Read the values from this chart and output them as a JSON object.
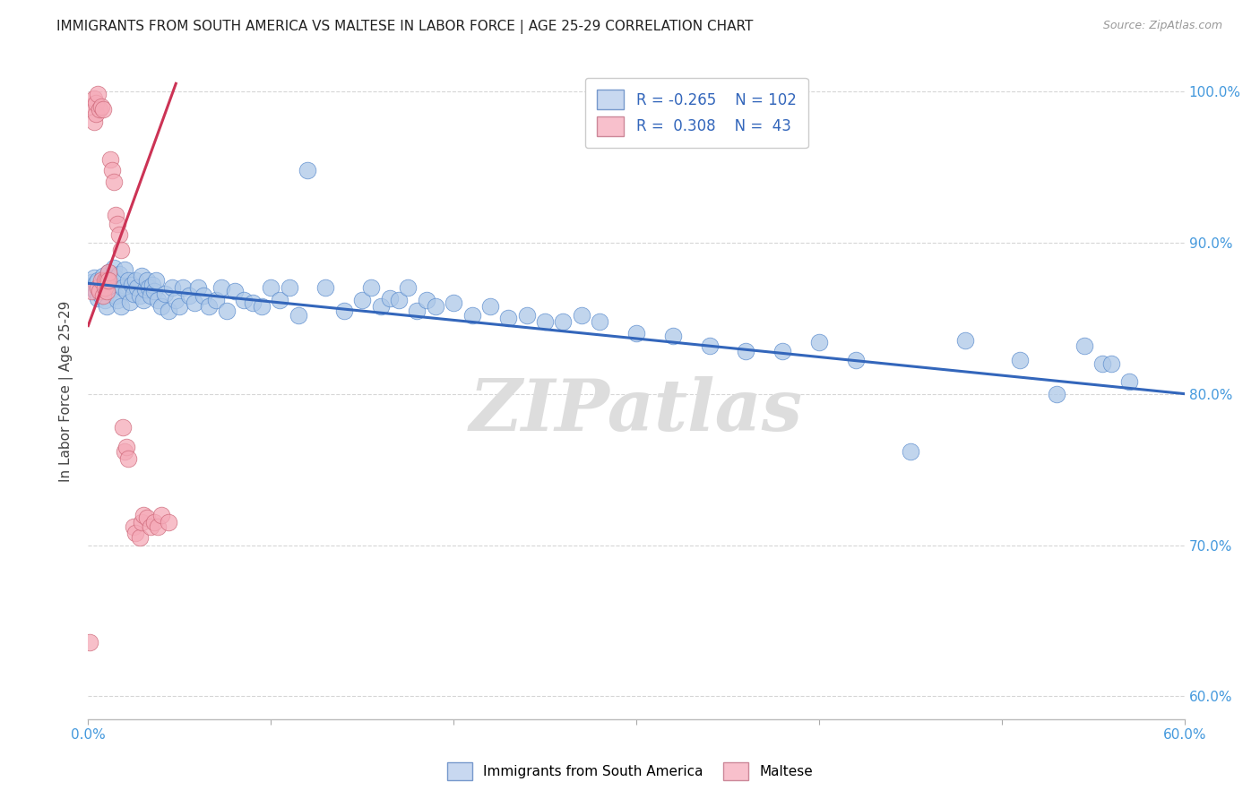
{
  "title": "IMMIGRANTS FROM SOUTH AMERICA VS MALTESE IN LABOR FORCE | AGE 25-29 CORRELATION CHART",
  "source": "Source: ZipAtlas.com",
  "ylabel": "In Labor Force | Age 25-29",
  "xmin": 0.0,
  "xmax": 0.6,
  "ymin": 0.585,
  "ymax": 1.018,
  "yticks": [
    0.6,
    0.7,
    0.8,
    0.9,
    1.0
  ],
  "ytick_labels_right": [
    "60.0%",
    "70.0%",
    "80.0%",
    "90.0%",
    "100.0%"
  ],
  "xticks": [
    0.0,
    0.1,
    0.2,
    0.3,
    0.4,
    0.5,
    0.6
  ],
  "blue_trend_x0": 0.0,
  "blue_trend_y0": 0.873,
  "blue_trend_x1": 0.6,
  "blue_trend_y1": 0.8,
  "pink_trend_x0": 0.0,
  "pink_trend_y0": 0.845,
  "pink_trend_x1": 0.048,
  "pink_trend_y1": 1.005,
  "legend_r_blue": "-0.265",
  "legend_n_blue": "102",
  "legend_r_pink": "0.308",
  "legend_n_pink": "43",
  "blue_dot_color": "#adc8e8",
  "blue_dot_edge": "#5588cc",
  "pink_dot_color": "#f5aab8",
  "pink_dot_edge": "#cc6677",
  "blue_line_color": "#3366bb",
  "pink_line_color": "#cc3355",
  "watermark": "ZIPatlas",
  "blue_scatter_x": [
    0.001,
    0.002,
    0.003,
    0.003,
    0.004,
    0.004,
    0.005,
    0.005,
    0.006,
    0.007,
    0.008,
    0.009,
    0.01,
    0.01,
    0.011,
    0.012,
    0.013,
    0.014,
    0.015,
    0.015,
    0.016,
    0.017,
    0.018,
    0.019,
    0.02,
    0.021,
    0.022,
    0.023,
    0.024,
    0.025,
    0.026,
    0.027,
    0.028,
    0.029,
    0.03,
    0.031,
    0.032,
    0.033,
    0.034,
    0.035,
    0.036,
    0.037,
    0.038,
    0.04,
    0.042,
    0.044,
    0.046,
    0.048,
    0.05,
    0.052,
    0.055,
    0.058,
    0.06,
    0.063,
    0.066,
    0.07,
    0.073,
    0.076,
    0.08,
    0.085,
    0.09,
    0.095,
    0.1,
    0.105,
    0.11,
    0.115,
    0.12,
    0.13,
    0.14,
    0.15,
    0.155,
    0.16,
    0.165,
    0.17,
    0.175,
    0.18,
    0.185,
    0.19,
    0.2,
    0.21,
    0.22,
    0.23,
    0.24,
    0.25,
    0.26,
    0.27,
    0.28,
    0.3,
    0.32,
    0.34,
    0.36,
    0.38,
    0.4,
    0.42,
    0.45,
    0.48,
    0.51,
    0.53,
    0.545,
    0.555,
    0.56,
    0.57
  ],
  "blue_scatter_y": [
    0.871,
    0.874,
    0.877,
    0.869,
    0.873,
    0.867,
    0.875,
    0.863,
    0.87,
    0.865,
    0.878,
    0.862,
    0.858,
    0.872,
    0.88,
    0.875,
    0.869,
    0.883,
    0.865,
    0.877,
    0.862,
    0.879,
    0.858,
    0.87,
    0.882,
    0.868,
    0.875,
    0.861,
    0.872,
    0.866,
    0.875,
    0.87,
    0.865,
    0.878,
    0.862,
    0.869,
    0.875,
    0.87,
    0.865,
    0.872,
    0.868,
    0.875,
    0.862,
    0.858,
    0.866,
    0.855,
    0.87,
    0.862,
    0.858,
    0.87,
    0.865,
    0.86,
    0.87,
    0.865,
    0.858,
    0.862,
    0.87,
    0.855,
    0.868,
    0.862,
    0.86,
    0.858,
    0.87,
    0.862,
    0.87,
    0.852,
    0.948,
    0.87,
    0.855,
    0.862,
    0.87,
    0.858,
    0.863,
    0.862,
    0.87,
    0.855,
    0.862,
    0.858,
    0.86,
    0.852,
    0.858,
    0.85,
    0.852,
    0.848,
    0.848,
    0.852,
    0.848,
    0.84,
    0.838,
    0.832,
    0.828,
    0.828,
    0.834,
    0.822,
    0.762,
    0.835,
    0.822,
    0.8,
    0.832,
    0.82,
    0.82,
    0.808
  ],
  "pink_scatter_x": [
    0.001,
    0.002,
    0.002,
    0.003,
    0.003,
    0.004,
    0.004,
    0.005,
    0.005,
    0.006,
    0.006,
    0.007,
    0.007,
    0.008,
    0.008,
    0.009,
    0.009,
    0.01,
    0.01,
    0.011,
    0.011,
    0.012,
    0.013,
    0.014,
    0.015,
    0.016,
    0.017,
    0.018,
    0.019,
    0.02,
    0.021,
    0.022,
    0.025,
    0.026,
    0.028,
    0.029,
    0.03,
    0.032,
    0.034,
    0.036,
    0.038,
    0.04,
    0.044
  ],
  "pink_scatter_y": [
    0.636,
    0.868,
    0.99,
    0.98,
    0.995,
    0.985,
    0.992,
    0.998,
    0.87,
    0.988,
    0.868,
    0.99,
    0.875,
    0.988,
    0.865,
    0.875,
    0.87,
    0.875,
    0.868,
    0.88,
    0.875,
    0.955,
    0.948,
    0.94,
    0.918,
    0.912,
    0.905,
    0.895,
    0.778,
    0.762,
    0.765,
    0.757,
    0.712,
    0.708,
    0.705,
    0.715,
    0.72,
    0.718,
    0.712,
    0.715,
    0.712,
    0.72,
    0.715
  ]
}
